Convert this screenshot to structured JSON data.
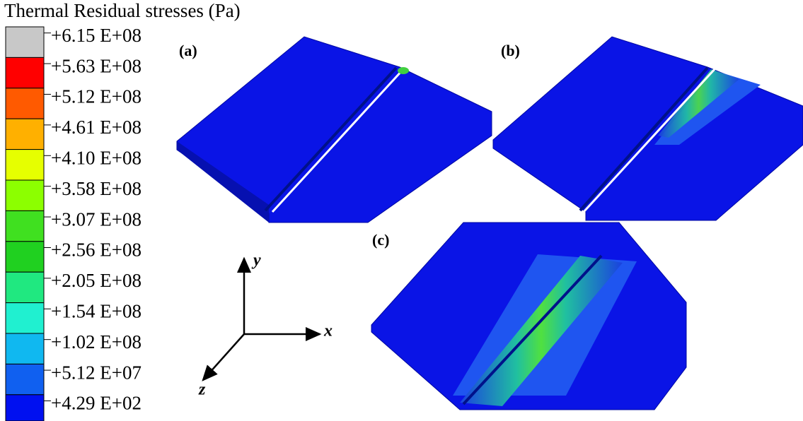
{
  "title": "Thermal Residual stresses (Pa)",
  "legend": {
    "labels": [
      "+6.15 E+08",
      "+5.63 E+08",
      "+5.12 E+08",
      "+4.61 E+08",
      "+4.10 E+08",
      "+3.58 E+08",
      "+3.07 E+08",
      "+2.56 E+08",
      "+2.05 E+08",
      "+1.54 E+08",
      "+1.02 E+08",
      "+5.12 E+07",
      "+4.29 E+02"
    ]
  },
  "panels": [
    "(a)",
    "(b)",
    "(c)"
  ],
  "axes": {
    "x": "x",
    "y": "y",
    "z": "z"
  }
}
